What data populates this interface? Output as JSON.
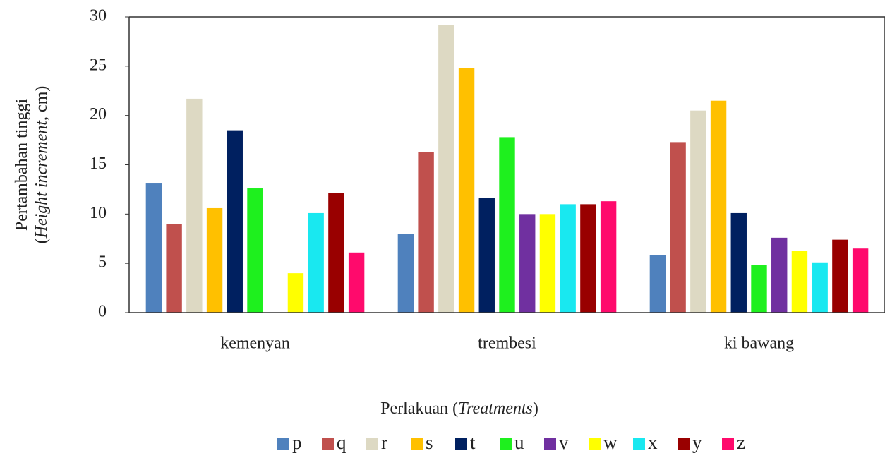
{
  "chart_data": {
    "type": "bar",
    "y_label": [
      [
        "Pertambahan tinggi"
      ],
      [
        "(",
        "Height increment",
        ", cm)"
      ]
    ],
    "x_label": [
      "Perlakuan (",
      "Treatments",
      ")"
    ],
    "categories": [
      "kemenyan",
      "trembesi",
      "ki bawang"
    ],
    "series": [
      {
        "name": "p",
        "color": "#4f81bd",
        "values": [
          13.1,
          8.0,
          5.8
        ]
      },
      {
        "name": "q",
        "color": "#c0504d",
        "values": [
          9.0,
          16.3,
          17.3
        ]
      },
      {
        "name": "r",
        "color": "#ddd9c3",
        "values": [
          21.7,
          29.2,
          20.5
        ]
      },
      {
        "name": "s",
        "color": "#ffc000",
        "values": [
          10.6,
          24.8,
          21.5
        ]
      },
      {
        "name": "t",
        "color": "#002060",
        "values": [
          18.5,
          11.6,
          10.1
        ]
      },
      {
        "name": "u",
        "color": "#1ef01e",
        "values": [
          12.6,
          17.8,
          4.8
        ]
      },
      {
        "name": "v",
        "color": "#7030a0",
        "values": [
          0,
          10.0,
          7.6
        ]
      },
      {
        "name": "w",
        "color": "#ffff00",
        "values": [
          4.0,
          10.0,
          6.3
        ]
      },
      {
        "name": "x",
        "color": "#19e8f0",
        "values": [
          10.1,
          11.0,
          5.1
        ]
      },
      {
        "name": "y",
        "color": "#990000",
        "values": [
          12.1,
          11.0,
          7.4
        ]
      },
      {
        "name": "z",
        "color": "#ff0a6c",
        "values": [
          6.1,
          11.3,
          6.5
        ]
      }
    ],
    "ylim": [
      0,
      30
    ],
    "yticks": [
      0,
      5,
      10,
      15,
      20,
      25,
      30
    ],
    "grid": false,
    "legend": "bottom"
  }
}
